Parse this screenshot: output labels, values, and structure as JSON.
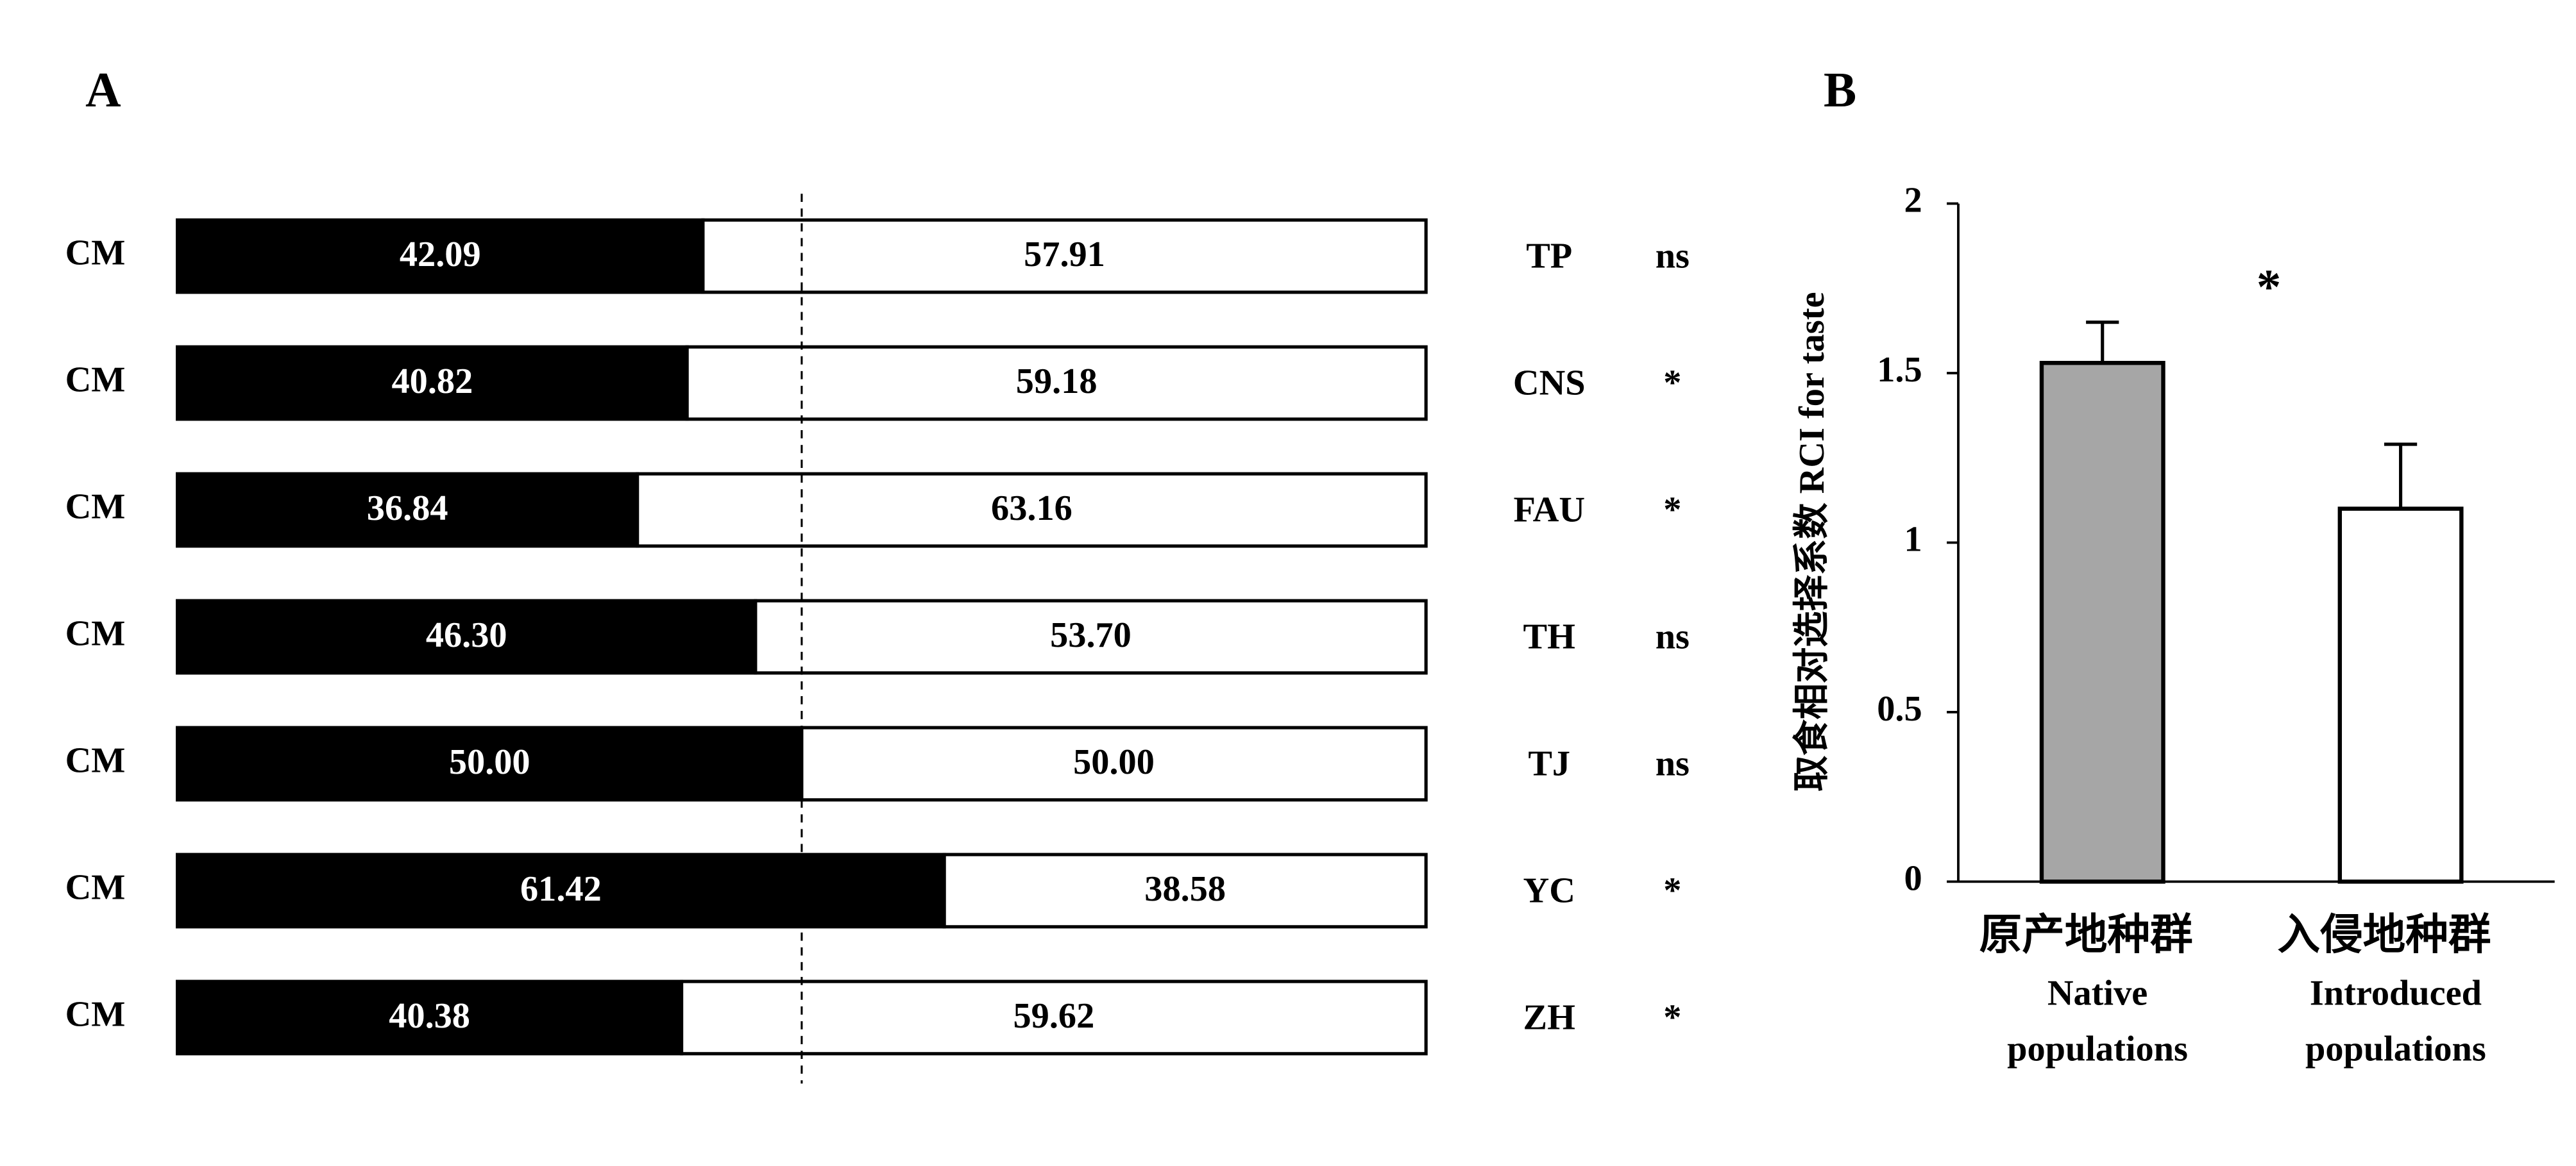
{
  "chart_data": [
    {
      "type": "stacked_bar_horizontal",
      "panel": "A",
      "categories": [
        "TP",
        "CNS",
        "FAU",
        "TH",
        "TJ",
        "YC",
        "ZH"
      ],
      "row_labels": [
        "CM",
        "CM",
        "CM",
        "CM",
        "CM",
        "CM",
        "CM"
      ],
      "significance": [
        "ns",
        "*",
        "*",
        "ns",
        "ns",
        "*",
        "*"
      ],
      "series": [
        {
          "color": "#000000",
          "values": [
            42.09,
            40.82,
            36.84,
            46.3,
            50,
            61.42,
            40.38
          ],
          "value_labels": [
            "42.09",
            "40.82",
            "36.84",
            "46.30",
            "50.00",
            "61.42",
            "40.38"
          ]
        },
        {
          "color": "#ffffff",
          "values": [
            57.91,
            59.18,
            63.16,
            53.7,
            50,
            38.58,
            59.62
          ],
          "value_labels": [
            "57.91",
            "59.18",
            "63.16",
            "53.70",
            "50.00",
            "38.58",
            "59.62"
          ]
        }
      ],
      "xlim": [
        0,
        100
      ],
      "reference_line": 50
    },
    {
      "type": "bar",
      "panel": "B",
      "categories": [
        "原产地种群",
        "入侵地种群"
      ],
      "category_subtitles": [
        [
          "Native",
          "populations"
        ],
        [
          "Introduced",
          "populations"
        ]
      ],
      "values": [
        1.53,
        1.1
      ],
      "errors": [
        0.12,
        0.19
      ],
      "colors": [
        "#a6a6a6",
        "#ffffff"
      ],
      "ylabel": "取食相对选择系数  RCI for taste",
      "annotation": "*",
      "ylim": [
        0,
        2
      ],
      "yticks": [
        0,
        0.5,
        1,
        1.5,
        2
      ]
    }
  ]
}
